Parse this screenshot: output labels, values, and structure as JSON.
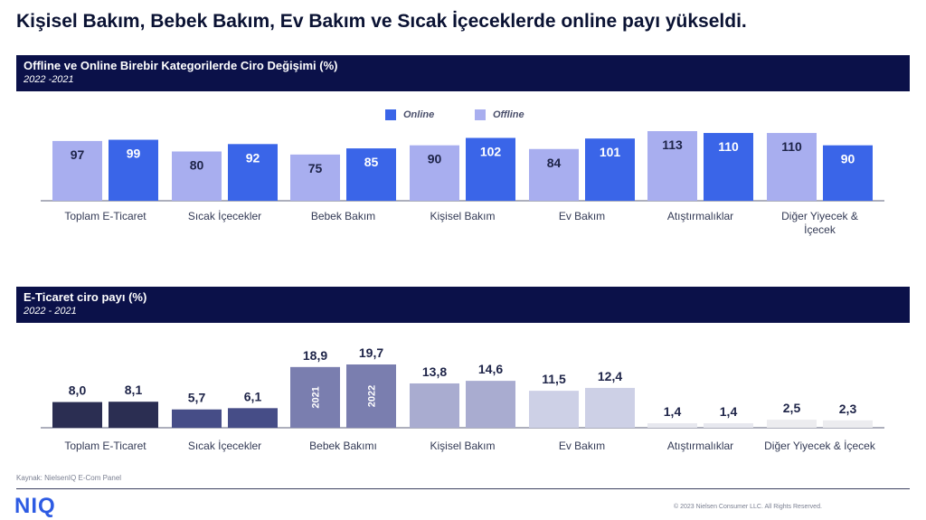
{
  "headline": "Kişisel Bakım, Bebek Bakım, Ev Bakım ve Sıcak İçeceklerde online payı yükseldi.",
  "source": "Kaynak: NielsenIQ E-Com Panel",
  "logo": "NIQ",
  "copyright": "© 2023 Nielsen Consumer LLC. All Rights Reserved.",
  "colors": {
    "banner": "#0b1149",
    "online": "#3a65e8",
    "offline": "#a8aeef",
    "ecom": [
      "#2b2e52",
      "#464d87",
      "#7a7eaf",
      "#a9acd0",
      "#cdd0e6",
      "#e7e8ef",
      "#ececef"
    ]
  },
  "chart_data": [
    {
      "type": "bar",
      "title": "Offline ve Online Birebir Kategorilerde Ciro Değişimi (%)",
      "subtitle": "2022 -2021",
      "categories": [
        "Toplam E-Ticaret",
        "Sıcak İçecekler",
        "Bebek Bakım",
        "Kişisel Bakım",
        "Ev Bakım",
        "Atıştırmalıklar",
        "Diğer Yiyecek & İçecek"
      ],
      "series": [
        {
          "name": "Offline",
          "values": [
            97,
            80,
            75,
            90,
            84,
            113,
            110
          ]
        },
        {
          "name": "Online",
          "values": [
            99,
            92,
            85,
            102,
            101,
            110,
            90
          ]
        }
      ],
      "legend": [
        "Online",
        "Offline"
      ],
      "legend_position": "top-center",
      "ylim": [
        0,
        120
      ],
      "grid": false
    },
    {
      "type": "bar",
      "title": "E-Ticaret ciro payı (%)",
      "subtitle": "2022 - 2021",
      "categories": [
        "Toplam E-Ticaret",
        "Sıcak İçecekler",
        "Bebek Bakımı",
        "Kişisel Bakım",
        "Ev Bakım",
        "Atıştırmalıklar",
        "Diğer Yiyecek & İçecek"
      ],
      "series": [
        {
          "name": "2021",
          "values": [
            8.0,
            5.7,
            18.9,
            13.8,
            11.5,
            1.4,
            2.5
          ],
          "labels": [
            "8,0",
            "5,7",
            "18,9",
            "13,8",
            "11,5",
            "1,4",
            "2,5"
          ]
        },
        {
          "name": "2022",
          "values": [
            8.1,
            6.1,
            19.7,
            14.6,
            12.4,
            1.4,
            2.3
          ],
          "labels": [
            "8,1",
            "6,1",
            "19,7",
            "14,6",
            "12,4",
            "1,4",
            "2,3"
          ]
        }
      ],
      "ylim": [
        0,
        21
      ],
      "grid": false
    }
  ]
}
